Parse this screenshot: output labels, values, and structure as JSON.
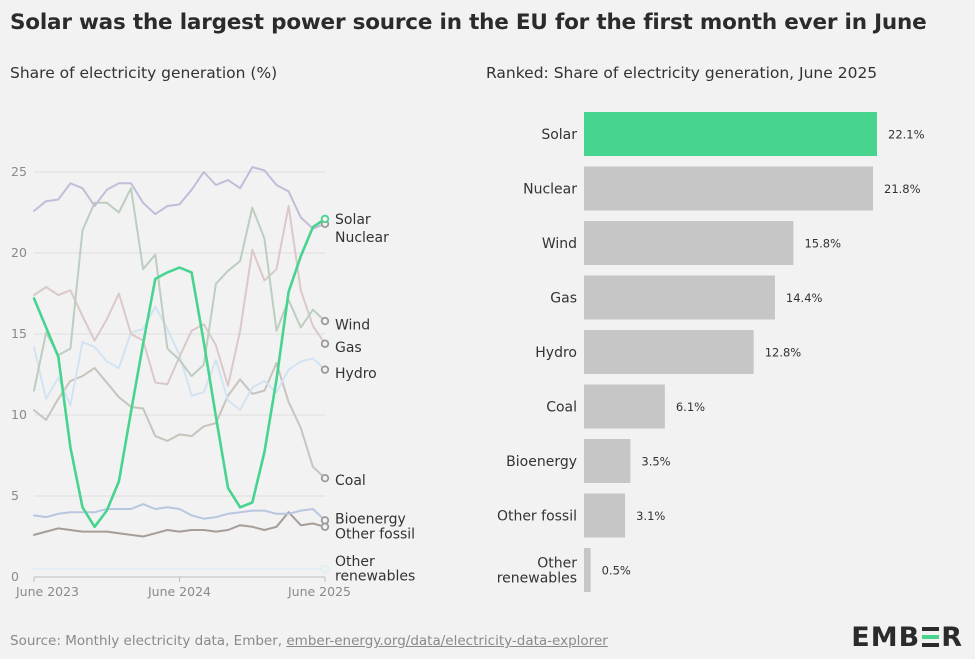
{
  "title": "Solar was the largest power source in the EU for the first month ever in June",
  "footer": {
    "source_text": "Source: Monthly electricity data, Ember, ",
    "link_text": "ember-energy.org/data/electricity-data-explorer"
  },
  "logo": {
    "text_left": "EMB",
    "text_right": "R"
  },
  "colors": {
    "solar": "#46d48e",
    "nuclear": "#c3bcd9",
    "wind": "#bccebf",
    "gas": "#dac9c8",
    "hydro": "#d2e3f3",
    "coal": "#c9c3bd",
    "bioenergy": "#b9c6df",
    "other_fossil": "#a79d98",
    "other_renewables": "#e2edf4",
    "bar_grey": "#c6c6c6",
    "grid": "#dddddd"
  },
  "chart_data": [
    {
      "type": "line",
      "subtitle": "Share of electricity generation (%)",
      "x": [
        "2023-06",
        "2023-07",
        "2023-08",
        "2023-09",
        "2023-10",
        "2023-11",
        "2023-12",
        "2024-01",
        "2024-02",
        "2024-03",
        "2024-04",
        "2024-05",
        "2024-06",
        "2024-07",
        "2024-08",
        "2024-09",
        "2024-10",
        "2024-11",
        "2024-12",
        "2025-01",
        "2025-02",
        "2025-03",
        "2025-04",
        "2025-05",
        "2025-06"
      ],
      "x_tick_labels": [
        "June 2023",
        "June 2024",
        "June 2025"
      ],
      "x_tick_index": [
        0,
        12,
        24
      ],
      "ylim": [
        0,
        25
      ],
      "y_ticks": [
        0,
        5,
        10,
        15,
        20,
        25
      ],
      "grid": true,
      "series": [
        {
          "name": "Solar",
          "key": "solar",
          "values": [
            17.2,
            15.4,
            13.6,
            8.0,
            4.3,
            3.1,
            4.1,
            5.9,
            10.2,
            14.4,
            18.4,
            18.8,
            19.1,
            18.8,
            14.5,
            9.9,
            5.5,
            4.3,
            4.6,
            7.7,
            12.2,
            17.6,
            19.8,
            21.6,
            22.1
          ]
        },
        {
          "name": "Nuclear",
          "key": "nuclear",
          "values": [
            22.6,
            23.2,
            23.3,
            24.3,
            24.0,
            22.9,
            23.9,
            24.3,
            24.3,
            23.1,
            22.4,
            22.9,
            23.0,
            23.9,
            25.0,
            24.2,
            24.5,
            24.0,
            25.3,
            25.1,
            24.2,
            23.8,
            22.2,
            21.5,
            21.8
          ]
        },
        {
          "name": "Wind",
          "key": "wind",
          "values": [
            11.5,
            15.1,
            13.7,
            14.1,
            21.4,
            23.1,
            23.1,
            22.5,
            24.0,
            19.0,
            19.9,
            14.1,
            13.4,
            12.4,
            13.1,
            18.1,
            18.9,
            19.5,
            22.8,
            20.9,
            15.2,
            17.1,
            15.4,
            16.5,
            15.8
          ]
        },
        {
          "name": "Gas",
          "key": "gas",
          "values": [
            17.4,
            17.9,
            17.4,
            17.7,
            16.1,
            14.6,
            15.9,
            17.5,
            15.0,
            14.6,
            12.0,
            11.9,
            13.6,
            15.2,
            15.6,
            14.3,
            11.8,
            15.2,
            20.2,
            18.3,
            19.0,
            22.9,
            17.7,
            15.5,
            14.4
          ]
        },
        {
          "name": "Hydro",
          "key": "hydro",
          "values": [
            14.2,
            11.0,
            12.3,
            10.6,
            14.5,
            14.2,
            13.3,
            12.9,
            15.1,
            15.3,
            16.7,
            15.3,
            13.7,
            11.2,
            11.4,
            13.4,
            10.9,
            10.3,
            11.7,
            12.1,
            11.4,
            12.8,
            13.3,
            13.5,
            12.8
          ]
        },
        {
          "name": "Coal",
          "key": "coal",
          "values": [
            10.3,
            9.7,
            11.0,
            12.1,
            12.4,
            12.9,
            12.0,
            11.1,
            10.5,
            10.4,
            8.7,
            8.4,
            8.8,
            8.7,
            9.3,
            9.5,
            11.2,
            12.2,
            11.3,
            11.5,
            13.2,
            10.8,
            9.2,
            6.8,
            6.1
          ]
        },
        {
          "name": "Bioenergy",
          "key": "bioenergy",
          "values": [
            3.8,
            3.7,
            3.9,
            4.0,
            4.0,
            4.0,
            4.2,
            4.2,
            4.2,
            4.5,
            4.2,
            4.3,
            4.2,
            3.8,
            3.6,
            3.7,
            3.9,
            4.0,
            4.1,
            4.1,
            3.9,
            3.9,
            4.1,
            4.2,
            3.5
          ]
        },
        {
          "name": "Other fossil",
          "key": "other_fossil",
          "values": [
            2.6,
            2.8,
            3.0,
            2.9,
            2.8,
            2.8,
            2.8,
            2.7,
            2.6,
            2.5,
            2.7,
            2.9,
            2.8,
            2.9,
            2.9,
            2.8,
            2.9,
            3.2,
            3.1,
            2.9,
            3.1,
            4.0,
            3.2,
            3.3,
            3.1
          ]
        },
        {
          "name": "Other renewables",
          "key": "other_renewables",
          "values": [
            0.5,
            0.5,
            0.5,
            0.5,
            0.5,
            0.5,
            0.5,
            0.5,
            0.5,
            0.5,
            0.5,
            0.5,
            0.5,
            0.5,
            0.5,
            0.5,
            0.5,
            0.5,
            0.5,
            0.5,
            0.5,
            0.5,
            0.5,
            0.5,
            0.5
          ]
        }
      ],
      "end_labels": [
        {
          "key": "solar",
          "text": "Solar",
          "at": 22.1
        },
        {
          "key": "nuclear",
          "text": "Nuclear",
          "at": 21.0
        },
        {
          "key": "wind",
          "text": "Wind",
          "at": 15.6
        },
        {
          "key": "gas",
          "text": "Gas",
          "at": 14.2
        },
        {
          "key": "hydro",
          "text": "Hydro",
          "at": 12.6
        },
        {
          "key": "coal",
          "text": "Coal",
          "at": 6.0
        },
        {
          "key": "bioenergy",
          "text": "Bioenergy",
          "at": 3.6
        },
        {
          "key": "other_fossil",
          "text": "Other fossil",
          "at": 2.7
        },
        {
          "key": "other_renewables",
          "text": "Other",
          "at": 1.0
        },
        {
          "key": "other_renewables",
          "text": "renewables",
          "at": 0.1
        }
      ]
    },
    {
      "type": "bar",
      "orientation": "horizontal",
      "subtitle": "Ranked: Share of electricity generation, June 2025",
      "categories": [
        "Solar",
        "Nuclear",
        "Wind",
        "Gas",
        "Hydro",
        "Coal",
        "Bioenergy",
        "Other fossil",
        "Other renewables"
      ],
      "category_lines": [
        [
          "Solar"
        ],
        [
          "Nuclear"
        ],
        [
          "Wind"
        ],
        [
          "Gas"
        ],
        [
          "Hydro"
        ],
        [
          "Coal"
        ],
        [
          "Bioenergy"
        ],
        [
          "Other fossil"
        ],
        [
          "Other",
          "renewables"
        ]
      ],
      "values": [
        22.1,
        21.8,
        15.8,
        14.4,
        12.8,
        6.1,
        3.5,
        3.1,
        0.5
      ],
      "value_labels": [
        "22.1%",
        "21.8%",
        "15.8%",
        "14.4%",
        "12.8%",
        "6.1%",
        "3.5%",
        "3.1%",
        "0.5%"
      ],
      "highlight": "Solar"
    }
  ]
}
